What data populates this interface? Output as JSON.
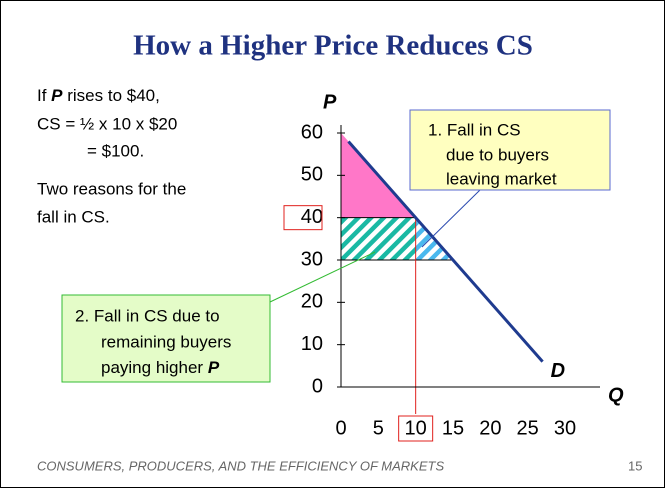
{
  "title": "How a Higher Price Reduces CS",
  "body": {
    "line1": [
      "If ",
      "P",
      " rises to $40,"
    ],
    "line2": "CS = ½ x 10 x $20",
    "line3": "= $100.",
    "line4": "Two reasons for the",
    "line5": "fall in CS."
  },
  "callout1": [
    "1. Fall in CS",
    "due to buyers",
    "leaving market"
  ],
  "callout2": [
    "2. Fall in CS due to",
    "remaining buyers",
    [
      "paying higher ",
      "P"
    ]
  ],
  "footer": "CONSUMERS, PRODUCERS, AND THE EFFICIENCY OF MARKETS",
  "page_number": "15",
  "chart_data": {
    "type": "line",
    "x": [
      1,
      27
    ],
    "series": [
      {
        "name": "D",
        "color": "#1f3b8f",
        "values": [
          58,
          6
        ]
      }
    ],
    "new_price": 40,
    "new_quantity": 10,
    "old_price": 30,
    "old_quantity": 15,
    "cs_color": "#ff77c8",
    "buyers_color": "#1ab9a4",
    "leavers_color": "#4ab8ee",
    "marker_color": "#e0201c",
    "xlabel": "Q",
    "ylabel": "P",
    "xlim": [
      0,
      30
    ],
    "ylim": [
      0,
      60
    ],
    "xticks": [
      0,
      5,
      10,
      15,
      20,
      25,
      30
    ],
    "yticks": [
      0,
      10,
      20,
      30,
      40,
      50,
      60
    ]
  }
}
